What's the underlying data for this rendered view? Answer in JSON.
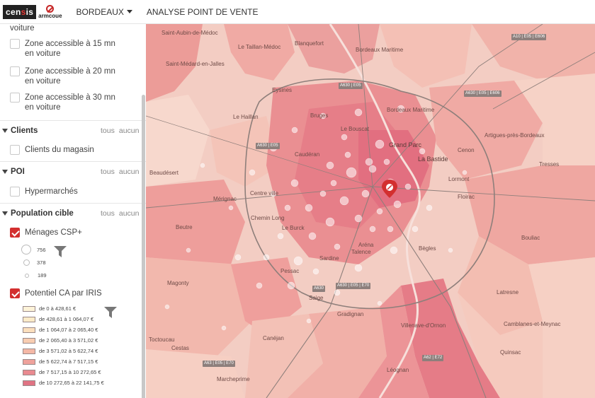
{
  "header": {
    "logo_censis": "cen",
    "logo_censis_red": "s",
    "logo_censis_end": "is",
    "logo_partner": "armcoue",
    "city_menu": "BORDEAUX",
    "analysis_menu": "ANALYSE POINT DE VENTE"
  },
  "sidebar": {
    "zones": [
      {
        "label": "voiture",
        "checked": false,
        "partial": true
      },
      {
        "label": "Zone accessible à 15 mn en voiture",
        "checked": false
      },
      {
        "label": "Zone accessible à 20 mn en voiture",
        "checked": false
      },
      {
        "label": "Zone accessible à 30 mn en voiture",
        "checked": false
      }
    ],
    "sections": {
      "clients": {
        "title": "Clients",
        "all": "tous",
        "none": "aucun",
        "item": "Clients du magasin"
      },
      "poi": {
        "title": "POI",
        "all": "tous",
        "none": "aucun",
        "item": "Hypermarchés"
      },
      "population": {
        "title": "Population cible",
        "all": "tous",
        "none": "aucun"
      }
    },
    "menages": {
      "label": "Ménages CSP+",
      "checked": true,
      "bubbles": [
        {
          "value": "756"
        },
        {
          "value": "378"
        },
        {
          "value": "189"
        }
      ]
    },
    "potentiel": {
      "label": "Potentiel CA par IRIS",
      "checked": true,
      "classes": [
        {
          "label": "de 0 à 428,61 €",
          "color": "#fdf3d8"
        },
        {
          "label": "de 428,61 à 1 064,07 €",
          "color": "#fcebc8"
        },
        {
          "label": "de 1 064,07 à 2 065,40 €",
          "color": "#fbdfbd"
        },
        {
          "label": "de 2 065,40 à 3 571,02 €",
          "color": "#f8cdb1"
        },
        {
          "label": "de 3 571,02 à 5 622,74 €",
          "color": "#f4b8a6"
        },
        {
          "label": "de 5 622,74 à 7 517,15 €",
          "color": "#efa29c"
        },
        {
          "label": "de 7 517,15 à 10 272,65 €",
          "color": "#e98a90"
        },
        {
          "label": "de 10 272,65 à 22 141,75 €",
          "color": "#e07383"
        }
      ]
    }
  },
  "map": {
    "places": [
      "Saint-Aubin-de-Médoc",
      "Le Taillan-Médoc",
      "Blanquefort",
      "Bordeaux Maritime",
      "Saint-Médard-en-Jalles",
      "Eysines",
      "Le Haillan",
      "Bruges",
      "Le Bouscat",
      "Grand Parc",
      "La Bastide",
      "Cenon",
      "Artigues-près-Bordeaux",
      "Tresses",
      "Bordeaux Maritime",
      "Caudéran",
      "Centre ville",
      "Beaudésert",
      "Mérignac",
      "Lormont",
      "Floirac",
      "Bouliac",
      "Pessac",
      "Talence",
      "Villenave-d'Ornon",
      "Bègles",
      "Gradignan",
      "Canéjan",
      "Cestas",
      "Léognan",
      "Camblanes-et-Meynac",
      "Latresne",
      "Quinsac",
      "Magonty",
      "Beutre",
      "Toctoucau",
      "Chemin Long",
      "Le Burck",
      "Saige",
      "Aréna",
      "Sardine",
      "Marcheprime"
    ],
    "roads": [
      "A630 | E05 | E606",
      "A630 | E05",
      "A10 | E05 | E606",
      "A630 | E05",
      "A63 | E05 | E70",
      "A62 | E72",
      "A630 | E05 | E70",
      "A630"
    ],
    "colors": {
      "light": "#f6d3c7",
      "mid": "#ee9c9b",
      "dark": "#e06c7c",
      "road": "#8e7f7b",
      "store": "#d32f2f"
    }
  }
}
